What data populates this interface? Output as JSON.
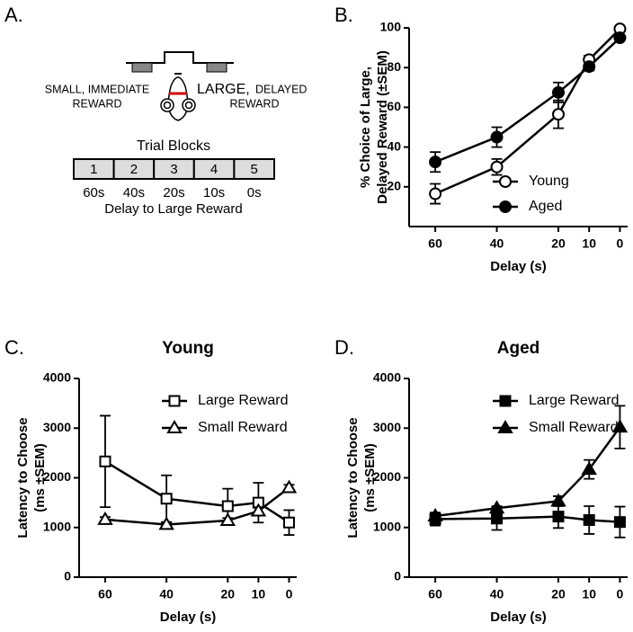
{
  "diagram": {
    "panel_label": "A.",
    "small_label": [
      "SMALL, IMMEDIATE",
      "REWARD"
    ],
    "large_label": [
      "LARGE,",
      "DELAYED",
      "REWARD"
    ],
    "blocks_title": "Trial Blocks",
    "blocks": [
      "1",
      "2",
      "3",
      "4",
      "5"
    ],
    "delays": [
      "60s",
      "40s",
      "20s",
      "10s",
      "0s"
    ],
    "delay_caption": "Delay to Large Reward"
  },
  "chart_data": [
    {
      "type": "line",
      "panel_label": "B.",
      "xlabel": "Delay (s)",
      "ylabel": [
        "% Choice of Large,",
        "Delayed Reward (±SEM)"
      ],
      "x": [
        60,
        40,
        20,
        10,
        0
      ],
      "xlim": [
        68.5,
        -2.5
      ],
      "xticks": [
        60,
        40,
        20,
        10,
        0
      ],
      "ylim": [
        0,
        100
      ],
      "yticks": [
        20,
        40,
        60,
        80,
        100
      ],
      "legend": "lower right",
      "series": [
        {
          "name": "Young",
          "color": "#000000",
          "marker": "circle",
          "fill": "#ffffff",
          "values": [
            16.5,
            30,
            56.5,
            84,
            99.5
          ],
          "errors": [
            5,
            4,
            7,
            2,
            1
          ]
        },
        {
          "name": "Aged",
          "color": "#000000",
          "marker": "circle",
          "fill": "#000000",
          "values": [
            32.5,
            45,
            67.5,
            80.5,
            95
          ],
          "errors": [
            5,
            5,
            5,
            2,
            1
          ]
        }
      ]
    },
    {
      "type": "line",
      "panel_label": "C.",
      "title": "Young",
      "xlabel": "Delay (s)",
      "ylabel": [
        "Latency to Choose",
        "(ms ±SEM)"
      ],
      "x": [
        60,
        40,
        20,
        10,
        0
      ],
      "xlim": [
        68.5,
        -2.5
      ],
      "xticks": [
        60,
        40,
        20,
        10,
        0
      ],
      "ylim": [
        0,
        4000
      ],
      "yticks": [
        0,
        1000,
        2000,
        3000,
        4000
      ],
      "legend": "upper right",
      "series": [
        {
          "name": "Large Reward",
          "color": "#000000",
          "marker": "square",
          "fill": "#ffffff",
          "values": [
            2330,
            1580,
            1430,
            1500,
            1100
          ],
          "errors": [
            920,
            470,
            350,
            400,
            250
          ]
        },
        {
          "name": "Small Reward",
          "color": "#000000",
          "marker": "triangle",
          "fill": "#ffffff",
          "values": [
            1160,
            1060,
            1140,
            1330,
            1800
          ],
          "errors": [
            50,
            40,
            50,
            80,
            60
          ]
        }
      ]
    },
    {
      "type": "line",
      "panel_label": "D.",
      "title": "Aged",
      "xlabel": "Delay (s)",
      "ylabel": [
        "Latency to Choose",
        "(ms ±SEM)"
      ],
      "x": [
        60,
        40,
        20,
        10,
        0
      ],
      "xlim": [
        68.5,
        -2.5
      ],
      "xticks": [
        60,
        40,
        20,
        10,
        0
      ],
      "ylim": [
        0,
        4000
      ],
      "yticks": [
        0,
        1000,
        2000,
        3000,
        4000
      ],
      "legend": "upper right",
      "series": [
        {
          "name": "Large Reward",
          "color": "#000000",
          "marker": "square",
          "fill": "#000000",
          "values": [
            1170,
            1180,
            1220,
            1150,
            1110
          ],
          "errors": [
            130,
            230,
            230,
            280,
            310
          ]
        },
        {
          "name": "Small Reward",
          "color": "#000000",
          "marker": "triangle",
          "fill": "#000000",
          "values": [
            1230,
            1390,
            1530,
            2170,
            3020
          ],
          "errors": [
            60,
            40,
            100,
            190,
            430
          ]
        }
      ]
    }
  ]
}
